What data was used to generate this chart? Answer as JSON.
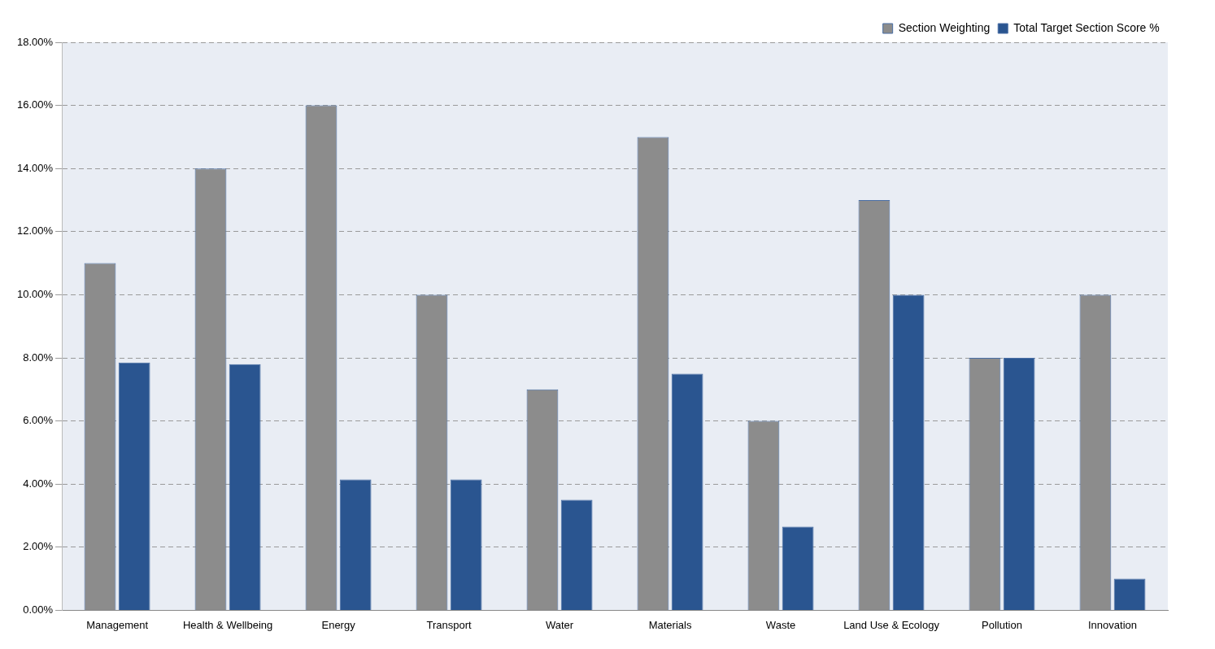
{
  "chart_data": {
    "type": "bar",
    "categories": [
      "Management",
      "Health & Wellbeing",
      "Energy",
      "Transport",
      "Water",
      "Materials",
      "Waste",
      "Land Use & Ecology",
      "Pollution",
      "Innovation"
    ],
    "series": [
      {
        "name": "Section Weighting",
        "color": "#8c8c8c",
        "values": [
          11,
          14,
          16,
          10,
          7,
          15,
          6,
          13,
          8,
          10
        ]
      },
      {
        "name": "Total Target Section Score %",
        "color": "#2a5590",
        "values": [
          7.85,
          7.8,
          4.15,
          4.15,
          3.5,
          7.5,
          2.65,
          10,
          8,
          1
        ]
      }
    ],
    "ylim": [
      0,
      18
    ],
    "yticks": [
      {
        "value": 0,
        "label": "0.00%"
      },
      {
        "value": 2,
        "label": "2.00%"
      },
      {
        "value": 4,
        "label": "4.00%"
      },
      {
        "value": 6,
        "label": "6.00%"
      },
      {
        "value": 8,
        "label": "8.00%"
      },
      {
        "value": 10,
        "label": "10.00%"
      },
      {
        "value": 12,
        "label": "12.00%"
      },
      {
        "value": 14,
        "label": "14.00%"
      },
      {
        "value": 16,
        "label": "16.00%"
      },
      {
        "value": 18,
        "label": "18.00%"
      }
    ],
    "grid": "y",
    "legend": "top right"
  }
}
